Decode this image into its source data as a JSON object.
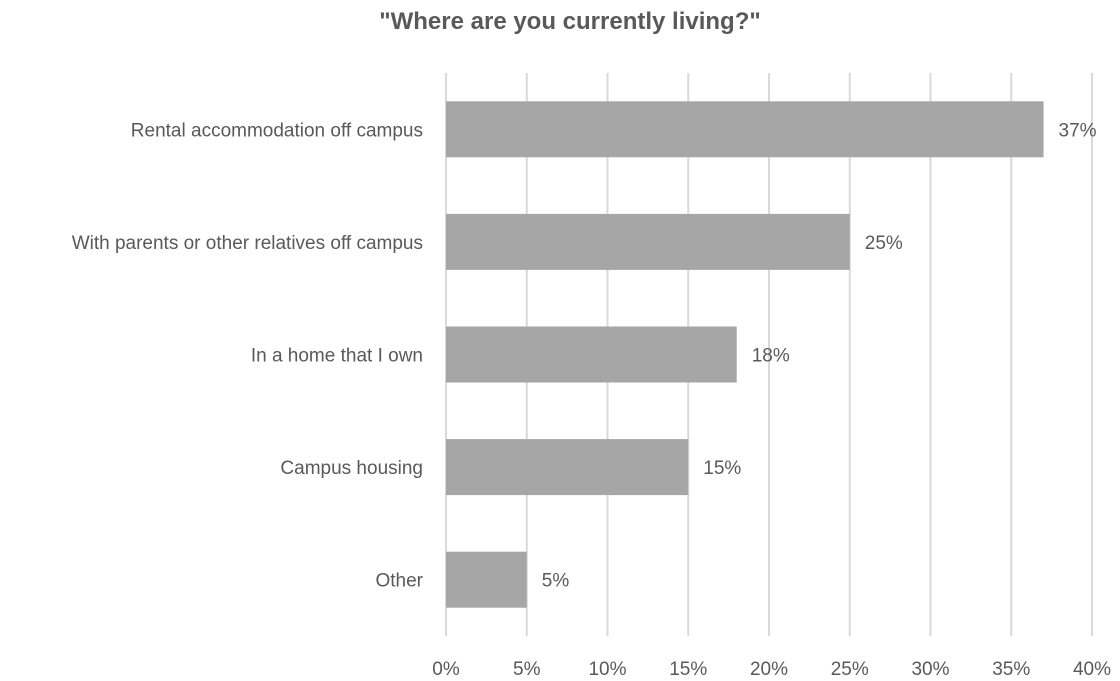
{
  "chart_data": {
    "type": "bar",
    "orientation": "horizontal",
    "title": "\"Where are you currently living?\"",
    "categories": [
      "Rental accommodation off campus",
      "With parents or other relatives off campus",
      "In a home that I own",
      "Campus housing",
      "Other"
    ],
    "values": [
      37,
      25,
      18,
      15,
      5
    ],
    "value_labels": [
      "37%",
      "25%",
      "18%",
      "15%",
      "5%"
    ],
    "xlim": [
      0,
      40
    ],
    "x_ticks": [
      0,
      5,
      10,
      15,
      20,
      25,
      30,
      35,
      40
    ],
    "x_tick_labels": [
      "0%",
      "5%",
      "10%",
      "15%",
      "20%",
      "25%",
      "30%",
      "35%",
      "40%"
    ],
    "grid": "vertical",
    "bar_color": "#a6a6a6",
    "grid_color": "#d9d9d9",
    "text_color": "#595959"
  }
}
